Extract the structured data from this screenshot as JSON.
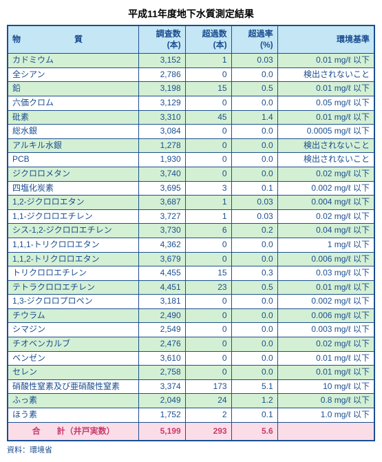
{
  "title": "平成11年度地下水質測定結果",
  "columns": [
    "物　　質",
    "調査数\n(本)",
    "超過数\n(本)",
    "超過率\n(%)",
    "環境基準"
  ],
  "rows": [
    {
      "name": "カドミウム",
      "survey": "3,152",
      "exceed": "1",
      "rate": "0.03",
      "std": "0.01 mg/ℓ 以下"
    },
    {
      "name": "全シアン",
      "survey": "2,786",
      "exceed": "0",
      "rate": "0.0",
      "std": "検出されないこと"
    },
    {
      "name": "鉛",
      "survey": "3,198",
      "exceed": "15",
      "rate": "0.5",
      "std": "0.01 mg/ℓ 以下"
    },
    {
      "name": "六価クロム",
      "survey": "3,129",
      "exceed": "0",
      "rate": "0.0",
      "std": "0.05 mg/ℓ 以下"
    },
    {
      "name": "砒素",
      "survey": "3,310",
      "exceed": "45",
      "rate": "1.4",
      "std": "0.01 mg/ℓ 以下"
    },
    {
      "name": "総水銀",
      "survey": "3,084",
      "exceed": "0",
      "rate": "0.0",
      "std": "0.0005 mg/ℓ 以下"
    },
    {
      "name": "アルキル水銀",
      "survey": "1,278",
      "exceed": "0",
      "rate": "0.0",
      "std": "検出されないこと"
    },
    {
      "name": "PCB",
      "survey": "1,930",
      "exceed": "0",
      "rate": "0.0",
      "std": "検出されないこと"
    },
    {
      "name": "ジクロロメタン",
      "survey": "3,740",
      "exceed": "0",
      "rate": "0.0",
      "std": "0.02 mg/ℓ 以下"
    },
    {
      "name": "四塩化炭素",
      "survey": "3,695",
      "exceed": "3",
      "rate": "0.1",
      "std": "0.002 mg/ℓ 以下"
    },
    {
      "name": "1,2-ジクロロエタン",
      "survey": "3,687",
      "exceed": "1",
      "rate": "0.03",
      "std": "0.004 mg/ℓ 以下"
    },
    {
      "name": "1,1-ジクロロエチレン",
      "survey": "3,727",
      "exceed": "1",
      "rate": "0.03",
      "std": "0.02 mg/ℓ 以下"
    },
    {
      "name": "シス-1,2-ジクロロエチレン",
      "survey": "3,730",
      "exceed": "6",
      "rate": "0.2",
      "std": "0.04 mg/ℓ 以下"
    },
    {
      "name": "1,1,1-トリクロロエタン",
      "survey": "4,362",
      "exceed": "0",
      "rate": "0.0",
      "std": "1 mg/ℓ 以下"
    },
    {
      "name": "1,1,2-トリクロロエタン",
      "survey": "3,679",
      "exceed": "0",
      "rate": "0.0",
      "std": "0.006 mg/ℓ 以下"
    },
    {
      "name": "トリクロロエチレン",
      "survey": "4,455",
      "exceed": "15",
      "rate": "0.3",
      "std": "0.03 mg/ℓ 以下"
    },
    {
      "name": "テトラクロロエチレン",
      "survey": "4,451",
      "exceed": "23",
      "rate": "0.5",
      "std": "0.01 mg/ℓ 以下"
    },
    {
      "name": "1,3-ジクロロプロペン",
      "survey": "3,181",
      "exceed": "0",
      "rate": "0.0",
      "std": "0.002 mg/ℓ 以下"
    },
    {
      "name": "チウラム",
      "survey": "2,490",
      "exceed": "0",
      "rate": "0.0",
      "std": "0.006 mg/ℓ 以下"
    },
    {
      "name": "シマジン",
      "survey": "2,549",
      "exceed": "0",
      "rate": "0.0",
      "std": "0.003 mg/ℓ 以下"
    },
    {
      "name": "チオベンカルブ",
      "survey": "2,476",
      "exceed": "0",
      "rate": "0.0",
      "std": "0.02 mg/ℓ 以下"
    },
    {
      "name": "ベンゼン",
      "survey": "3,610",
      "exceed": "0",
      "rate": "0.0",
      "std": "0.01 mg/ℓ 以下"
    },
    {
      "name": "セレン",
      "survey": "2,758",
      "exceed": "0",
      "rate": "0.0",
      "std": "0.01 mg/ℓ 以下"
    },
    {
      "name": "硝酸性窒素及び亜硝酸性窒素",
      "survey": "3,374",
      "exceed": "173",
      "rate": "5.1",
      "std": "10 mg/ℓ 以下"
    },
    {
      "name": "ふっ素",
      "survey": "2,049",
      "exceed": "24",
      "rate": "1.2",
      "std": "0.8 mg/ℓ 以下"
    },
    {
      "name": "ほう素",
      "survey": "1,752",
      "exceed": "2",
      "rate": "0.1",
      "std": "1.0 mg/ℓ 以下"
    }
  ],
  "total": {
    "name": "合　　計（井戸実数）",
    "survey": "5,199",
    "exceed": "293",
    "rate": "5.6",
    "std": ""
  },
  "note": "資料：環境省"
}
